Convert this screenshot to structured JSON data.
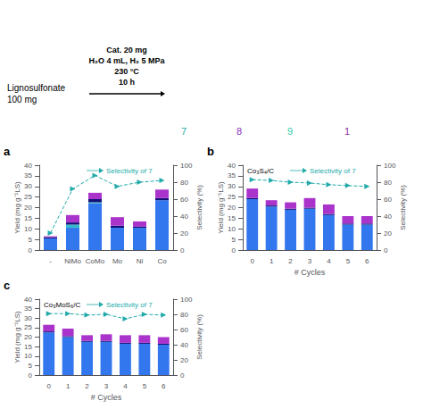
{
  "chart_data": [
    {
      "type": "bar",
      "title": "a",
      "stacked": true,
      "grid": false,
      "categories": [
        "-",
        "NiMo",
        "CoMo",
        "Mo",
        "Ni",
        "Co"
      ],
      "ylabel": "Yield (mg g⁻¹LS)",
      "y2label": "Selectivity (%)",
      "ylim": [
        0,
        40
      ],
      "yticks": [
        0,
        5,
        10,
        15,
        20,
        25,
        30,
        35,
        40
      ],
      "y2lim": [
        0,
        100
      ],
      "y2ticks": [
        0,
        20,
        40,
        60,
        80,
        100
      ],
      "series": [
        {
          "color": "#3377ee",
          "values": [
            5.5,
            10.5,
            22.0,
            10.5,
            10.5,
            23.5
          ]
        },
        {
          "color": "#33bbcc",
          "values": [
            0.0,
            1.5,
            0.5,
            0.0,
            0.0,
            0.0
          ]
        },
        {
          "color": "#111177",
          "values": [
            0.5,
            1.0,
            1.5,
            1.0,
            0.5,
            1.0
          ]
        },
        {
          "color": "#aa33cc",
          "values": [
            0.5,
            3.5,
            3.0,
            4.0,
            2.5,
            4.0
          ]
        },
        {
          "type": "line",
          "axis": "y2",
          "color": "#22aaaa",
          "marker": "triangle-right",
          "line_style": "dashed",
          "values": [
            20,
            72,
            88,
            75,
            80,
            82
          ]
        }
      ],
      "annotations": [
        {
          "text": "Selectivity of 7",
          "color": "#22aaaa"
        },
        {
          "text": "Lignosulfonate\n100 mg"
        },
        {
          "text": "Cat. 20 mg\nH₂O 4 mL, H₂ 5 MPa\n230 °C\n10 h"
        },
        {
          "text": "7",
          "color": "#22aaaa"
        },
        {
          "text": "8",
          "color": "#8833bb"
        },
        {
          "text": "9",
          "color": "#33ccaa"
        },
        {
          "text": "1",
          "color": "#882299"
        }
      ]
    },
    {
      "type": "bar",
      "title": "b",
      "stacked": true,
      "grid": false,
      "categories": [
        "0",
        "1",
        "2",
        "3",
        "4",
        "5",
        "6"
      ],
      "xlabel": "# Cycles",
      "ylabel": "Yield (mg g⁻¹LS)",
      "y2label": "Selectivity (%)",
      "ylim": [
        0,
        40
      ],
      "yticks": [
        0,
        5,
        10,
        15,
        20,
        25,
        30,
        35,
        40
      ],
      "y2lim": [
        0,
        100
      ],
      "y2ticks": [
        0,
        20,
        40,
        60,
        80,
        100
      ],
      "series": [
        {
          "color": "#3377ee",
          "values": [
            24.0,
            20.5,
            19.0,
            19.5,
            16.5,
            12.0,
            12.0
          ]
        },
        {
          "color": "#111177",
          "values": [
            0.5,
            0.5,
            0.5,
            0.5,
            0.5,
            0.5,
            0.5
          ]
        },
        {
          "color": "#aa33cc",
          "values": [
            4.5,
            2.5,
            3.0,
            4.5,
            4.5,
            3.5,
            3.5
          ]
        },
        {
          "type": "line",
          "axis": "y2",
          "color": "#22aaaa",
          "marker": "triangle-right",
          "line_style": "dashed",
          "values": [
            83,
            82,
            80,
            79,
            77,
            76,
            75
          ]
        }
      ],
      "annotations": [
        {
          "text": "Co₃S₄/C"
        },
        {
          "text": "Selectivity of 7",
          "color": "#22aaaa"
        }
      ]
    },
    {
      "type": "bar",
      "title": "c",
      "stacked": true,
      "grid": false,
      "categories": [
        "0",
        "1",
        "2",
        "3",
        "4",
        "5",
        "6"
      ],
      "xlabel": "# Cycles",
      "ylabel": "Yield (mg g⁻¹LS)",
      "y2label": "Selectivity (%)",
      "ylim": [
        0,
        40
      ],
      "yticks": [
        0,
        5,
        10,
        15,
        20,
        25,
        30,
        35,
        40
      ],
      "y2lim": [
        0,
        100
      ],
      "y2ticks": [
        0,
        20,
        40,
        60,
        80,
        100
      ],
      "series": [
        {
          "color": "#3377ee",
          "values": [
            22.5,
            20.0,
            17.5,
            17.5,
            16.5,
            16.5,
            16.0
          ]
        },
        {
          "color": "#111177",
          "values": [
            0.5,
            0.5,
            0.5,
            0.5,
            0.5,
            0.5,
            0.5
          ]
        },
        {
          "color": "#aa33cc",
          "values": [
            3.5,
            4.0,
            3.0,
            3.5,
            4.0,
            4.0,
            3.5
          ]
        },
        {
          "type": "line",
          "axis": "y2",
          "color": "#22aaaa",
          "marker": "triangle-right",
          "line_style": "dashed",
          "values": [
            81,
            81,
            79,
            80,
            74,
            80,
            79
          ]
        }
      ],
      "annotations": [
        {
          "text": "Co₃MoS₆/C"
        },
        {
          "text": "Selectivity of 7",
          "color": "#22aaaa"
        }
      ]
    }
  ]
}
